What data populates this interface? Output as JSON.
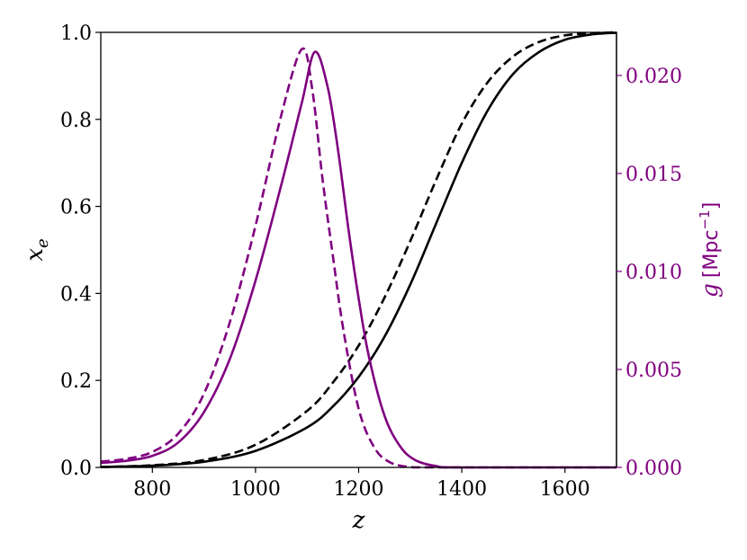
{
  "chart_data": {
    "type": "line",
    "xlabel": "z",
    "ylabel_left": "x",
    "ylabel_left_sub": "e",
    "ylabel_right_var": "g",
    "ylabel_right_unit": "[Mpc",
    "ylabel_right_exp": "−1",
    "ylabel_right_close": "]",
    "xlim": [
      700,
      1700
    ],
    "ylim_left": [
      0.0,
      1.0
    ],
    "ylim_right": [
      0.0,
      0.0222
    ],
    "x_ticks": [
      "800",
      "1000",
      "1200",
      "1400",
      "1600"
    ],
    "y_left_ticks": [
      "0.0",
      "0.2",
      "0.4",
      "0.6",
      "0.8",
      "1.0"
    ],
    "y_right_ticks": [
      "0.000",
      "0.005",
      "0.010",
      "0.015",
      "0.020"
    ],
    "colors": {
      "xe": "#000000",
      "g": "#800080",
      "right_axis": "#800080"
    },
    "series": [
      {
        "axis": "left",
        "style": "solid",
        "color": "#000000",
        "points": [
          [
            700,
            0.001
          ],
          [
            800,
            0.004
          ],
          [
            900,
            0.013
          ],
          [
            1000,
            0.038
          ],
          [
            1100,
            0.092
          ],
          [
            1150,
            0.14
          ],
          [
            1200,
            0.208
          ],
          [
            1250,
            0.3
          ],
          [
            1300,
            0.42
          ],
          [
            1350,
            0.56
          ],
          [
            1400,
            0.7
          ],
          [
            1450,
            0.82
          ],
          [
            1500,
            0.905
          ],
          [
            1550,
            0.955
          ],
          [
            1600,
            0.983
          ],
          [
            1650,
            0.995
          ],
          [
            1700,
            0.999
          ]
        ]
      },
      {
        "axis": "left",
        "style": "dashed",
        "color": "#000000",
        "points": [
          [
            700,
            0.001
          ],
          [
            800,
            0.005
          ],
          [
            900,
            0.017
          ],
          [
            1000,
            0.052
          ],
          [
            1100,
            0.13
          ],
          [
            1150,
            0.195
          ],
          [
            1200,
            0.28
          ],
          [
            1250,
            0.39
          ],
          [
            1300,
            0.52
          ],
          [
            1350,
            0.66
          ],
          [
            1400,
            0.79
          ],
          [
            1450,
            0.885
          ],
          [
            1500,
            0.945
          ],
          [
            1550,
            0.978
          ],
          [
            1600,
            0.993
          ],
          [
            1650,
            0.998
          ],
          [
            1700,
            1.0
          ]
        ]
      },
      {
        "axis": "right",
        "style": "solid",
        "color": "#800080",
        "points": [
          [
            700,
            0.00023
          ],
          [
            750,
            0.00034
          ],
          [
            800,
            0.00059
          ],
          [
            850,
            0.00127
          ],
          [
            900,
            0.00282
          ],
          [
            950,
            0.00552
          ],
          [
            1000,
            0.00953
          ],
          [
            1050,
            0.01442
          ],
          [
            1090,
            0.01863
          ],
          [
            1115,
            0.0212
          ],
          [
            1140,
            0.0194
          ],
          [
            1160,
            0.0162
          ],
          [
            1180,
            0.0122
          ],
          [
            1200,
            0.00862
          ],
          [
            1220,
            0.00564
          ],
          [
            1250,
            0.00265
          ],
          [
            1280,
            0.00109
          ],
          [
            1310,
            0.00037
          ],
          [
            1350,
            7e-05
          ],
          [
            1400,
            0.0
          ],
          [
            1700,
            0.0
          ]
        ]
      },
      {
        "axis": "right",
        "style": "dashed",
        "color": "#800080",
        "points": [
          [
            700,
            0.0003
          ],
          [
            750,
            0.00044
          ],
          [
            800,
            0.00079
          ],
          [
            850,
            0.00172
          ],
          [
            900,
            0.00376
          ],
          [
            950,
            0.00739
          ],
          [
            1000,
            0.01233
          ],
          [
            1050,
            0.01798
          ],
          [
            1090,
            0.02135
          ],
          [
            1110,
            0.0193
          ],
          [
            1130,
            0.0147
          ],
          [
            1150,
            0.0108
          ],
          [
            1170,
            0.00708
          ],
          [
            1200,
            0.00299
          ],
          [
            1230,
            0.00103
          ],
          [
            1260,
            0.00027
          ],
          [
            1300,
            2e-05
          ],
          [
            1350,
            0.0
          ],
          [
            1700,
            0.0
          ]
        ]
      }
    ]
  }
}
